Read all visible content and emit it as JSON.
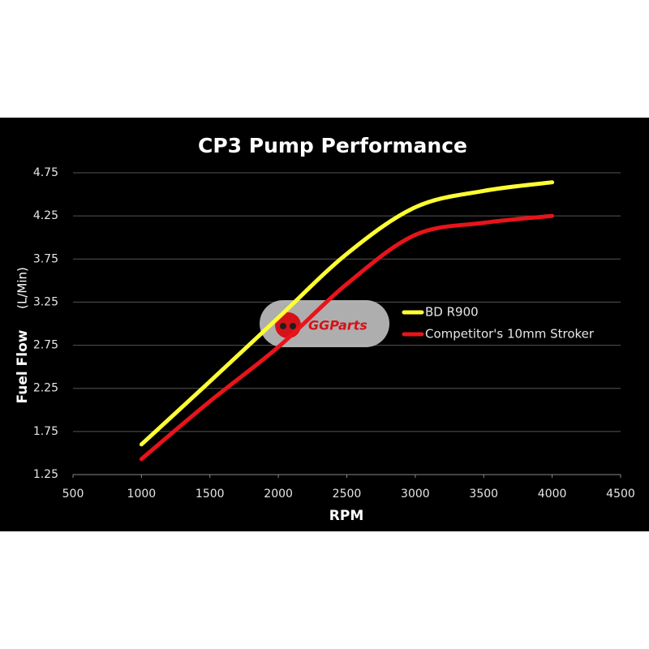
{
  "chart_data": {
    "type": "line",
    "title": "CP3 Pump Performance",
    "xlabel": "RPM",
    "ylabel": "Fuel Flow",
    "ylabel_unit": "(L/Min)",
    "watermark": "GGParts",
    "x": [
      1000,
      1500,
      2000,
      2500,
      3000,
      3500,
      4000
    ],
    "series": [
      {
        "name": "BD R900",
        "color": "#ffff33",
        "values": [
          1.6,
          2.33,
          3.07,
          3.81,
          4.35,
          4.54,
          4.64
        ]
      },
      {
        "name": "Competitor's 10mm Stroker",
        "color": "#e8141b",
        "values": [
          1.43,
          2.1,
          2.73,
          3.46,
          4.03,
          4.17,
          4.25
        ]
      }
    ],
    "xlim": [
      500,
      4500
    ],
    "xticks": [
      500,
      1000,
      1500,
      2000,
      2500,
      3000,
      3500,
      4000,
      4500
    ],
    "ylim": [
      1.25,
      4.75
    ],
    "yticks": [
      1.25,
      1.75,
      2.25,
      2.75,
      3.25,
      3.75,
      4.25,
      4.75
    ],
    "grid": true,
    "legend": "right"
  }
}
